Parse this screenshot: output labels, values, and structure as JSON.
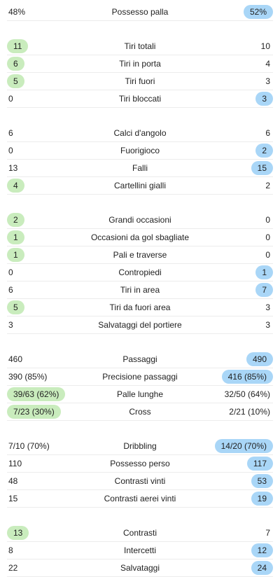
{
  "groups": [
    {
      "rows": [
        {
          "label": "Possesso palla",
          "home": "48%",
          "away": "52%",
          "leader": "away"
        }
      ]
    },
    {
      "rows": [
        {
          "label": "Tiri totali",
          "home": "11",
          "away": "10",
          "leader": "home"
        },
        {
          "label": "Tiri in porta",
          "home": "6",
          "away": "4",
          "leader": "home"
        },
        {
          "label": "Tiri fuori",
          "home": "5",
          "away": "3",
          "leader": "home"
        },
        {
          "label": "Tiri bloccati",
          "home": "0",
          "away": "3",
          "leader": "away"
        }
      ]
    },
    {
      "rows": [
        {
          "label": "Calci d'angolo",
          "home": "6",
          "away": "6",
          "leader": "none"
        },
        {
          "label": "Fuorigioco",
          "home": "0",
          "away": "2",
          "leader": "away"
        },
        {
          "label": "Falli",
          "home": "13",
          "away": "15",
          "leader": "away"
        },
        {
          "label": "Cartellini gialli",
          "home": "4",
          "away": "2",
          "leader": "home"
        }
      ]
    },
    {
      "rows": [
        {
          "label": "Grandi occasioni",
          "home": "2",
          "away": "0",
          "leader": "home"
        },
        {
          "label": "Occasioni da gol sbagliate",
          "home": "1",
          "away": "0",
          "leader": "home"
        },
        {
          "label": "Pali e traverse",
          "home": "1",
          "away": "0",
          "leader": "home"
        },
        {
          "label": "Contropiedi",
          "home": "0",
          "away": "1",
          "leader": "away"
        },
        {
          "label": "Tiri in area",
          "home": "6",
          "away": "7",
          "leader": "away"
        },
        {
          "label": "Tiri da fuori area",
          "home": "5",
          "away": "3",
          "leader": "home"
        },
        {
          "label": "Salvataggi del portiere",
          "home": "3",
          "away": "3",
          "leader": "none"
        }
      ]
    },
    {
      "rows": [
        {
          "label": "Passaggi",
          "home": "460",
          "away": "490",
          "leader": "away"
        },
        {
          "label": "Precisione passaggi",
          "home": "390 (85%)",
          "away": "416 (85%)",
          "leader": "away"
        },
        {
          "label": "Palle lunghe",
          "home": "39/63 (62%)",
          "away": "32/50 (64%)",
          "leader": "home"
        },
        {
          "label": "Cross",
          "home": "7/23 (30%)",
          "away": "2/21 (10%)",
          "leader": "home"
        }
      ]
    },
    {
      "rows": [
        {
          "label": "Dribbling",
          "home": "7/10 (70%)",
          "away": "14/20 (70%)",
          "leader": "away"
        },
        {
          "label": "Possesso perso",
          "home": "110",
          "away": "117",
          "leader": "away"
        },
        {
          "label": "Contrasti vinti",
          "home": "48",
          "away": "53",
          "leader": "away"
        },
        {
          "label": "Contrasti aerei vinti",
          "home": "15",
          "away": "19",
          "leader": "away"
        }
      ]
    },
    {
      "rows": [
        {
          "label": "Contrasti",
          "home": "13",
          "away": "7",
          "leader": "home"
        },
        {
          "label": "Intercetti",
          "home": "8",
          "away": "12",
          "leader": "away"
        },
        {
          "label": "Salvataggi",
          "home": "22",
          "away": "24",
          "leader": "away"
        }
      ]
    }
  ]
}
